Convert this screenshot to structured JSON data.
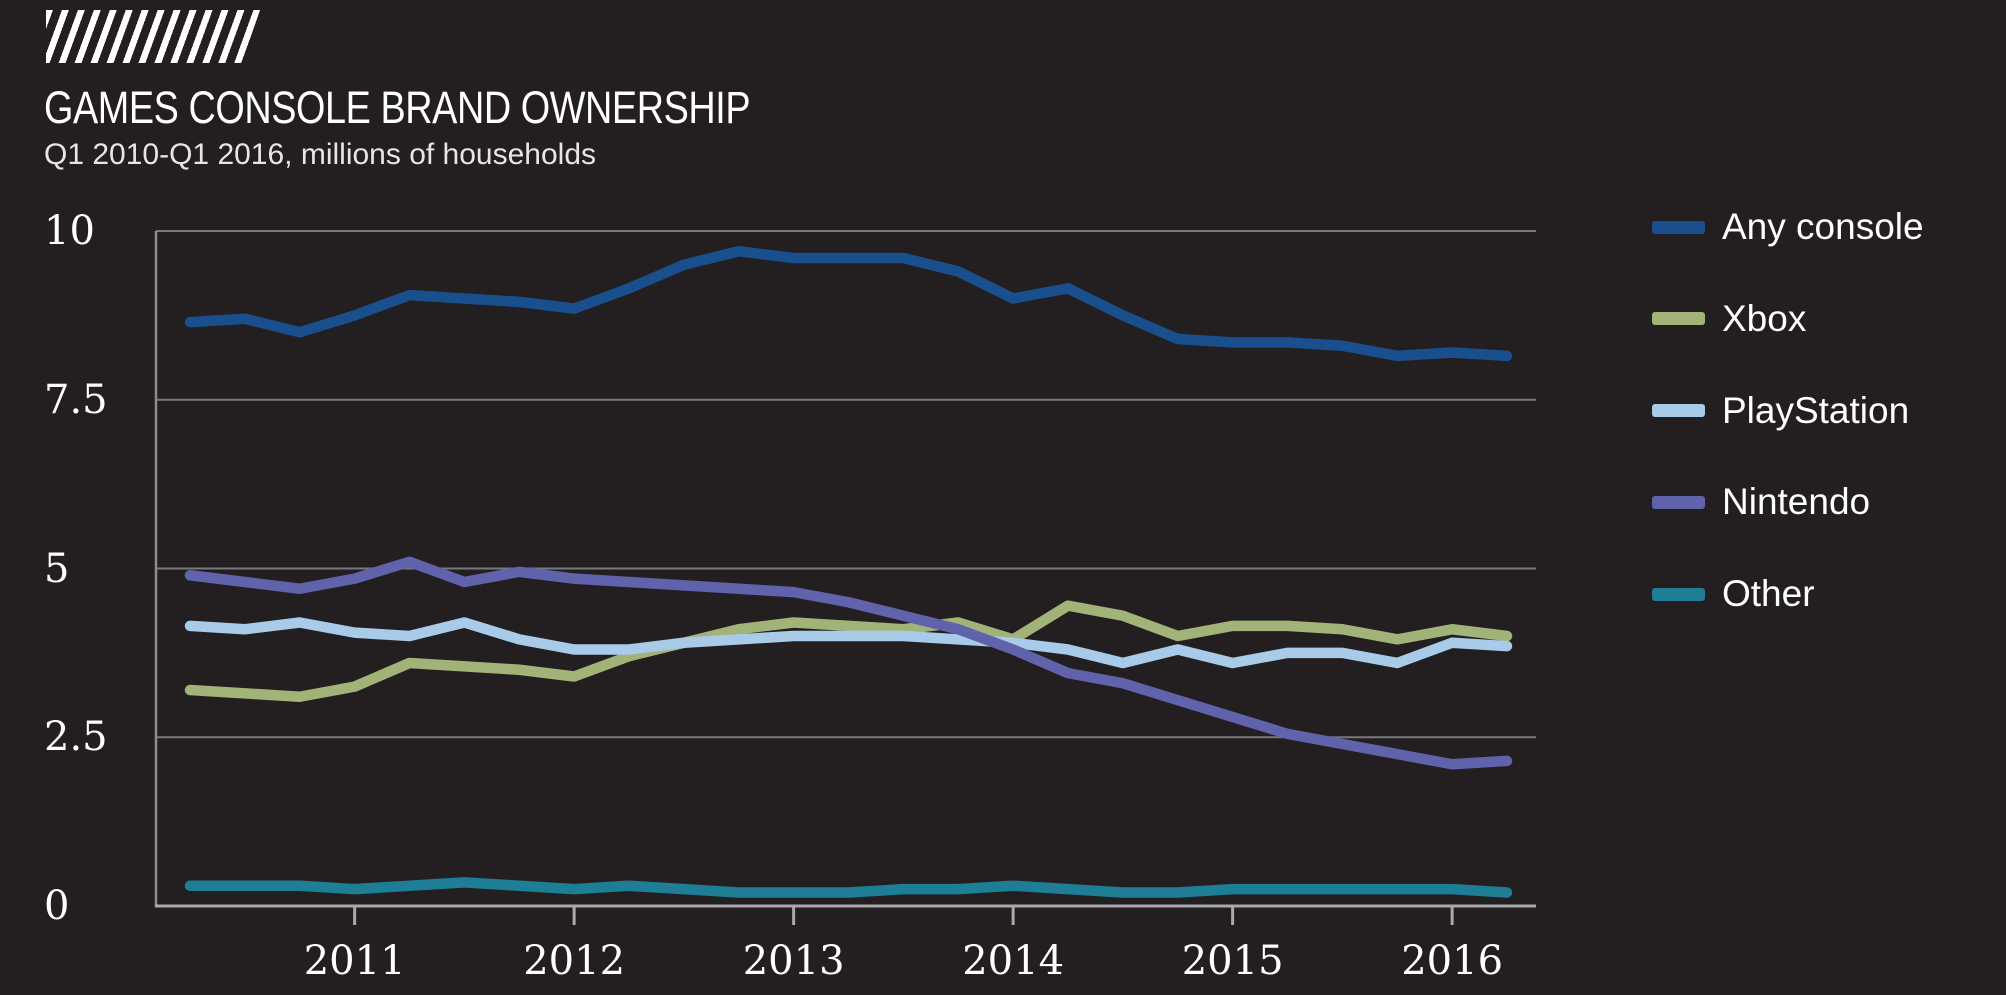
{
  "chart_data": {
    "type": "line",
    "title": "GAMES CONSOLE BRAND OWNERSHIP",
    "subtitle": "Q1 2010-Q1 2016, millions of households",
    "xlabel": "",
    "ylabel": "millions of households",
    "ylim": [
      0,
      10
    ],
    "grid": "horizontal",
    "legend_position": "right",
    "background_color": "#231f20",
    "gridline_color": "#77787b",
    "axis_color": "#a9aaac",
    "y_tick_labels": [
      "10",
      "7.5",
      "5",
      "2.5",
      "0"
    ],
    "y_tick_values": [
      10,
      7.5,
      5,
      2.5,
      0
    ],
    "x_tick_labels": [
      "2011",
      "2012",
      "2013",
      "2014",
      "2015",
      "2016"
    ],
    "x": [
      "Q1 2010",
      "Q2 2010",
      "Q3 2010",
      "Q4 2010",
      "Q1 2011",
      "Q2 2011",
      "Q3 2011",
      "Q4 2011",
      "Q1 2012",
      "Q2 2012",
      "Q3 2012",
      "Q4 2012",
      "Q1 2013",
      "Q2 2013",
      "Q3 2013",
      "Q4 2013",
      "Q1 2014",
      "Q2 2014",
      "Q3 2014",
      "Q4 2014",
      "Q1 2015",
      "Q2 2015",
      "Q3 2015",
      "Q4 2015",
      "Q1 2016"
    ],
    "series": [
      {
        "name": "Any console",
        "color": "#1a4f8e",
        "values": [
          8.65,
          8.7,
          8.5,
          8.75,
          9.05,
          9.0,
          8.95,
          8.85,
          9.15,
          9.5,
          9.7,
          9.6,
          9.6,
          9.6,
          9.4,
          9.0,
          9.15,
          8.75,
          8.4,
          8.35,
          8.35,
          8.3,
          8.15,
          8.2,
          8.15
        ]
      },
      {
        "name": "Xbox",
        "color": "#a2b377",
        "values": [
          3.2,
          3.15,
          3.1,
          3.25,
          3.6,
          3.55,
          3.5,
          3.4,
          3.7,
          3.9,
          4.1,
          4.2,
          4.15,
          4.1,
          4.2,
          3.95,
          4.45,
          4.3,
          4.0,
          4.15,
          4.15,
          4.1,
          3.95,
          4.1,
          4.0
        ]
      },
      {
        "name": "PlayStation",
        "color": "#a7cbe9",
        "values": [
          4.15,
          4.1,
          4.2,
          4.05,
          4.0,
          4.2,
          3.95,
          3.8,
          3.8,
          3.9,
          3.95,
          4.0,
          4.0,
          4.0,
          3.95,
          3.9,
          3.8,
          3.6,
          3.8,
          3.6,
          3.75,
          3.75,
          3.6,
          3.9,
          3.85
        ]
      },
      {
        "name": "Nintendo",
        "color": "#6063ab",
        "values": [
          4.9,
          4.8,
          4.7,
          4.85,
          5.1,
          4.8,
          4.95,
          4.85,
          4.8,
          4.75,
          4.7,
          4.65,
          4.5,
          4.3,
          4.1,
          3.8,
          3.45,
          3.3,
          3.05,
          2.8,
          2.55,
          2.4,
          2.25,
          2.1,
          2.15
        ]
      },
      {
        "name": "Other",
        "color": "#1e7e96",
        "values": [
          0.3,
          0.3,
          0.3,
          0.25,
          0.3,
          0.35,
          0.3,
          0.25,
          0.3,
          0.25,
          0.2,
          0.2,
          0.2,
          0.25,
          0.25,
          0.3,
          0.25,
          0.2,
          0.2,
          0.25,
          0.25,
          0.25,
          0.25,
          0.25,
          0.2
        ]
      }
    ]
  }
}
